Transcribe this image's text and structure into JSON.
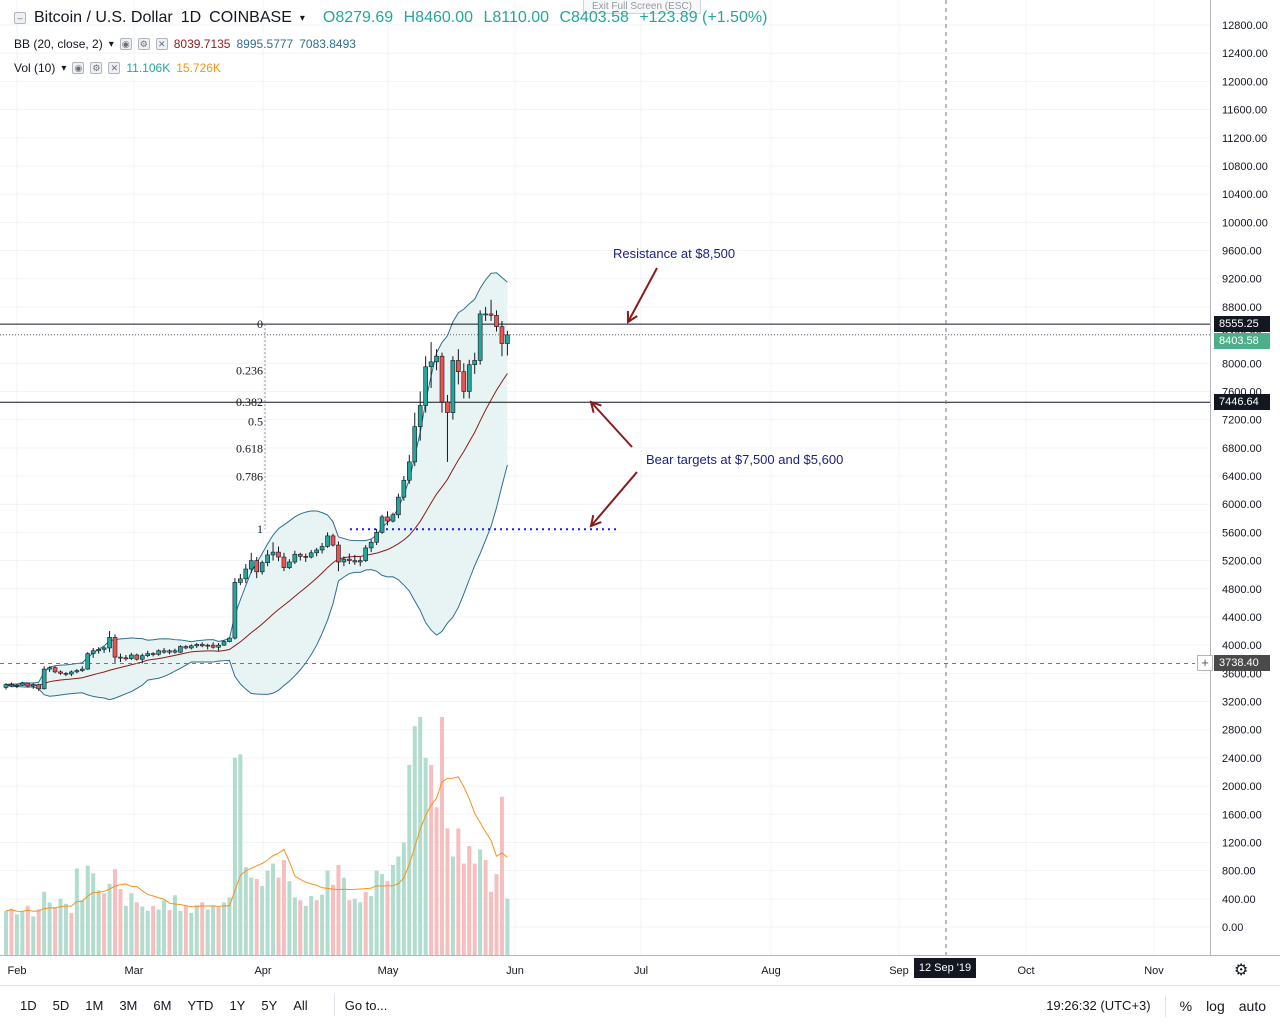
{
  "header": {
    "symbol": "Bitcoin / U.S. Dollar",
    "interval": "1D",
    "exchange": "COINBASE",
    "open": "O8279.69",
    "high": "H8460.00",
    "low": "L8110.00",
    "close": "C8403.58",
    "change": "+123.89 (+1.50%)",
    "exit_fullscreen": "Exit Full Screen (ESC)"
  },
  "indicators": {
    "bb": {
      "label": "BB (20, close, 2)",
      "basis": "8039.7135",
      "upper": "8995.5777",
      "lower": "7083.8493"
    },
    "vol": {
      "label": "Vol (10)",
      "value": "11.106K",
      "ma": "15.726K"
    }
  },
  "annotations": {
    "resistance": "Resistance at $8,500",
    "bear_targets": "Bear targets at $7,500 and $5,600"
  },
  "fib_labels": [
    "0",
    "0.236",
    "0.382",
    "0.5",
    "0.618",
    "0.786",
    "1"
  ],
  "fib_levels": [
    8555.25,
    7896,
    7446.64,
    7170,
    6792,
    6394,
    5645
  ],
  "price_tags": {
    "resistance": "8555.25",
    "current": "8403.58",
    "support": "7446.64",
    "crosshair": "3738.40"
  },
  "crosshair_date": "12 Sep '19",
  "bottom_bar": {
    "timeframes": [
      "1D",
      "5D",
      "1M",
      "3M",
      "6M",
      "YTD",
      "1Y",
      "5Y",
      "All"
    ],
    "goto": "Go to...",
    "time": "19:26:32 (UTC+3)",
    "percent": "%",
    "log": "log",
    "auto": "auto"
  },
  "colors": {
    "up": "#26a69a",
    "down": "#ef5350",
    "bb_fill": "#e8f4f4",
    "bb_line": "#2e6e8e",
    "basis": "#8b1a1a",
    "vol_ma": "#f7931a",
    "annot": "#1a237e",
    "arrow": "#8b1a1a"
  },
  "chart_data": {
    "type": "candlestick",
    "price_axis": {
      "ticks": [
        "12800.00",
        "12400.00",
        "12000.00",
        "11600.00",
        "11200.00",
        "10800.00",
        "10400.00",
        "10000.00",
        "9600.00",
        "9200.00",
        "8800.00",
        "8400.00",
        "8000.00",
        "7600.00",
        "7200.00",
        "6800.00",
        "6400.00",
        "6000.00",
        "5600.00",
        "5200.00",
        "4800.00",
        "4400.00",
        "4000.00",
        "3600.00",
        "3200.00",
        "2800.00",
        "2400.00",
        "2000.00",
        "1600.00",
        "1200.00",
        "800.00",
        "400.00",
        "0.00"
      ]
    },
    "time_axis": [
      "Feb",
      "Mar",
      "Apr",
      "May",
      "Jun",
      "Jul",
      "Aug",
      "Sep",
      "Oct",
      "Nov"
    ],
    "candles": [
      [
        3400,
        3460,
        3370,
        3440
      ],
      [
        3440,
        3470,
        3410,
        3420
      ],
      [
        3420,
        3450,
        3390,
        3430
      ],
      [
        3430,
        3480,
        3420,
        3460
      ],
      [
        3460,
        3470,
        3400,
        3420
      ],
      [
        3420,
        3460,
        3380,
        3440
      ],
      [
        3440,
        3450,
        3350,
        3380
      ],
      [
        3380,
        3700,
        3370,
        3660
      ],
      [
        3660,
        3700,
        3620,
        3680
      ],
      [
        3680,
        3700,
        3600,
        3620
      ],
      [
        3620,
        3640,
        3580,
        3600
      ],
      [
        3600,
        3620,
        3560,
        3590
      ],
      [
        3590,
        3640,
        3560,
        3620
      ],
      [
        3620,
        3660,
        3600,
        3640
      ],
      [
        3640,
        3700,
        3620,
        3660
      ],
      [
        3660,
        3900,
        3650,
        3880
      ],
      [
        3880,
        3960,
        3820,
        3920
      ],
      [
        3920,
        3970,
        3880,
        3940
      ],
      [
        3940,
        3980,
        3890,
        3960
      ],
      [
        3960,
        4200,
        3900,
        4110
      ],
      [
        4110,
        4150,
        3750,
        3830
      ],
      [
        3830,
        3880,
        3760,
        3820
      ],
      [
        3820,
        3860,
        3780,
        3810
      ],
      [
        3810,
        3890,
        3790,
        3860
      ],
      [
        3860,
        3880,
        3780,
        3800
      ],
      [
        3800,
        3880,
        3740,
        3850
      ],
      [
        3850,
        3920,
        3830,
        3880
      ],
      [
        3880,
        3900,
        3840,
        3870
      ],
      [
        3870,
        3940,
        3850,
        3920
      ],
      [
        3920,
        3960,
        3880,
        3900
      ],
      [
        3900,
        3940,
        3870,
        3920
      ],
      [
        3920,
        3950,
        3880,
        3900
      ],
      [
        3900,
        4000,
        3890,
        3980
      ],
      [
        3980,
        4000,
        3940,
        3960
      ],
      [
        3960,
        4010,
        3940,
        3990
      ],
      [
        3990,
        4030,
        3960,
        4010
      ],
      [
        4010,
        4040,
        3970,
        3990
      ],
      [
        3990,
        4020,
        3940,
        4000
      ],
      [
        4000,
        4040,
        3950,
        3970
      ],
      [
        3970,
        4030,
        3920,
        4000
      ],
      [
        4000,
        4070,
        3990,
        4050
      ],
      [
        4050,
        4110,
        4040,
        4100
      ],
      [
        4100,
        4950,
        4080,
        4890
      ],
      [
        4890,
        5010,
        4850,
        4940
      ],
      [
        4940,
        5150,
        4880,
        5080
      ],
      [
        5080,
        5310,
        5020,
        5200
      ],
      [
        5200,
        5250,
        4950,
        5040
      ],
      [
        5040,
        5200,
        5000,
        5170
      ],
      [
        5170,
        5350,
        5120,
        5280
      ],
      [
        5280,
        5460,
        5200,
        5320
      ],
      [
        5320,
        5400,
        5190,
        5250
      ],
      [
        5250,
        5310,
        5050,
        5100
      ],
      [
        5100,
        5220,
        5080,
        5180
      ],
      [
        5180,
        5340,
        5150,
        5290
      ],
      [
        5290,
        5310,
        5200,
        5260
      ],
      [
        5260,
        5300,
        5180,
        5250
      ],
      [
        5250,
        5350,
        5230,
        5310
      ],
      [
        5310,
        5380,
        5260,
        5350
      ],
      [
        5350,
        5450,
        5300,
        5400
      ],
      [
        5400,
        5600,
        5380,
        5550
      ],
      [
        5550,
        5580,
        5400,
        5420
      ],
      [
        5420,
        5470,
        5050,
        5180
      ],
      [
        5180,
        5260,
        5120,
        5220
      ],
      [
        5220,
        5300,
        5150,
        5200
      ],
      [
        5200,
        5280,
        5140,
        5180
      ],
      [
        5180,
        5250,
        5120,
        5200
      ],
      [
        5200,
        5420,
        5180,
        5380
      ],
      [
        5380,
        5500,
        5320,
        5460
      ],
      [
        5460,
        5650,
        5420,
        5600
      ],
      [
        5600,
        5850,
        5580,
        5820
      ],
      [
        5820,
        5900,
        5700,
        5760
      ],
      [
        5760,
        5880,
        5740,
        5850
      ],
      [
        5850,
        6150,
        5800,
        6100
      ],
      [
        6100,
        6400,
        6050,
        6340
      ],
      [
        6340,
        6700,
        6290,
        6600
      ],
      [
        6600,
        7300,
        6540,
        7100
      ],
      [
        7100,
        7600,
        6900,
        7400
      ],
      [
        7400,
        8100,
        7300,
        7950
      ],
      [
        7950,
        8300,
        7650,
        8020
      ],
      [
        8020,
        8200,
        7900,
        8100
      ],
      [
        8100,
        8150,
        7300,
        7450
      ],
      [
        7450,
        7550,
        6600,
        7300
      ],
      [
        7300,
        8100,
        7200,
        8040
      ],
      [
        8040,
        8200,
        7700,
        7880
      ],
      [
        7880,
        8000,
        7500,
        7600
      ],
      [
        7600,
        8050,
        7500,
        7980
      ],
      [
        7980,
        8150,
        7850,
        8040
      ],
      [
        8040,
        8750,
        7980,
        8700
      ],
      [
        8700,
        8800,
        8600,
        8700
      ],
      [
        8700,
        8900,
        8600,
        8680
      ],
      [
        8680,
        8750,
        8450,
        8520
      ],
      [
        8520,
        8600,
        8100,
        8280
      ],
      [
        8280,
        8460,
        8110,
        8403
      ]
    ],
    "volume": [
      [
        230,
        "u"
      ],
      [
        260,
        "d"
      ],
      [
        180,
        "u"
      ],
      [
        220,
        "u"
      ],
      [
        300,
        "d"
      ],
      [
        150,
        "u"
      ],
      [
        250,
        "d"
      ],
      [
        500,
        "u"
      ],
      [
        350,
        "u"
      ],
      [
        280,
        "d"
      ],
      [
        400,
        "u"
      ],
      [
        330,
        "u"
      ],
      [
        200,
        "d"
      ],
      [
        830,
        "u"
      ],
      [
        380,
        "u"
      ],
      [
        870,
        "u"
      ],
      [
        760,
        "u"
      ],
      [
        520,
        "u"
      ],
      [
        480,
        "d"
      ],
      [
        610,
        "u"
      ],
      [
        820,
        "d"
      ],
      [
        540,
        "d"
      ],
      [
        300,
        "u"
      ],
      [
        480,
        "u"
      ],
      [
        350,
        "d"
      ],
      [
        290,
        "u"
      ],
      [
        230,
        "u"
      ],
      [
        300,
        "d"
      ],
      [
        250,
        "u"
      ],
      [
        380,
        "u"
      ],
      [
        240,
        "d"
      ],
      [
        450,
        "u"
      ],
      [
        230,
        "u"
      ],
      [
        300,
        "d"
      ],
      [
        200,
        "u"
      ],
      [
        310,
        "u"
      ],
      [
        350,
        "d"
      ],
      [
        250,
        "u"
      ],
      [
        300,
        "u"
      ],
      [
        280,
        "d"
      ],
      [
        350,
        "u"
      ],
      [
        420,
        "u"
      ],
      [
        2400,
        "u"
      ],
      [
        2450,
        "u"
      ],
      [
        850,
        "u"
      ],
      [
        700,
        "u"
      ],
      [
        680,
        "d"
      ],
      [
        580,
        "u"
      ],
      [
        800,
        "u"
      ],
      [
        900,
        "u"
      ],
      [
        700,
        "d"
      ],
      [
        950,
        "d"
      ],
      [
        650,
        "u"
      ],
      [
        420,
        "u"
      ],
      [
        380,
        "d"
      ],
      [
        300,
        "u"
      ],
      [
        440,
        "u"
      ],
      [
        380,
        "d"
      ],
      [
        460,
        "u"
      ],
      [
        800,
        "u"
      ],
      [
        600,
        "d"
      ],
      [
        880,
        "d"
      ],
      [
        700,
        "u"
      ],
      [
        380,
        "d"
      ],
      [
        400,
        "u"
      ],
      [
        350,
        "u"
      ],
      [
        500,
        "d"
      ],
      [
        440,
        "u"
      ],
      [
        800,
        "u"
      ],
      [
        750,
        "u"
      ],
      [
        650,
        "d"
      ],
      [
        880,
        "u"
      ],
      [
        1000,
        "u"
      ],
      [
        1200,
        "u"
      ],
      [
        2300,
        "u"
      ],
      [
        2850,
        "u"
      ],
      [
        2980,
        "u"
      ],
      [
        2400,
        "u"
      ],
      [
        2300,
        "d"
      ],
      [
        1700,
        "d"
      ],
      [
        2980,
        "d"
      ],
      [
        1400,
        "d"
      ],
      [
        1000,
        "u"
      ],
      [
        1400,
        "d"
      ],
      [
        900,
        "d"
      ],
      [
        1150,
        "d"
      ],
      [
        900,
        "d"
      ],
      [
        1100,
        "u"
      ],
      [
        950,
        "d"
      ],
      [
        500,
        "d"
      ],
      [
        750,
        "d"
      ],
      [
        1850,
        "d"
      ],
      [
        400,
        "u"
      ]
    ]
  }
}
